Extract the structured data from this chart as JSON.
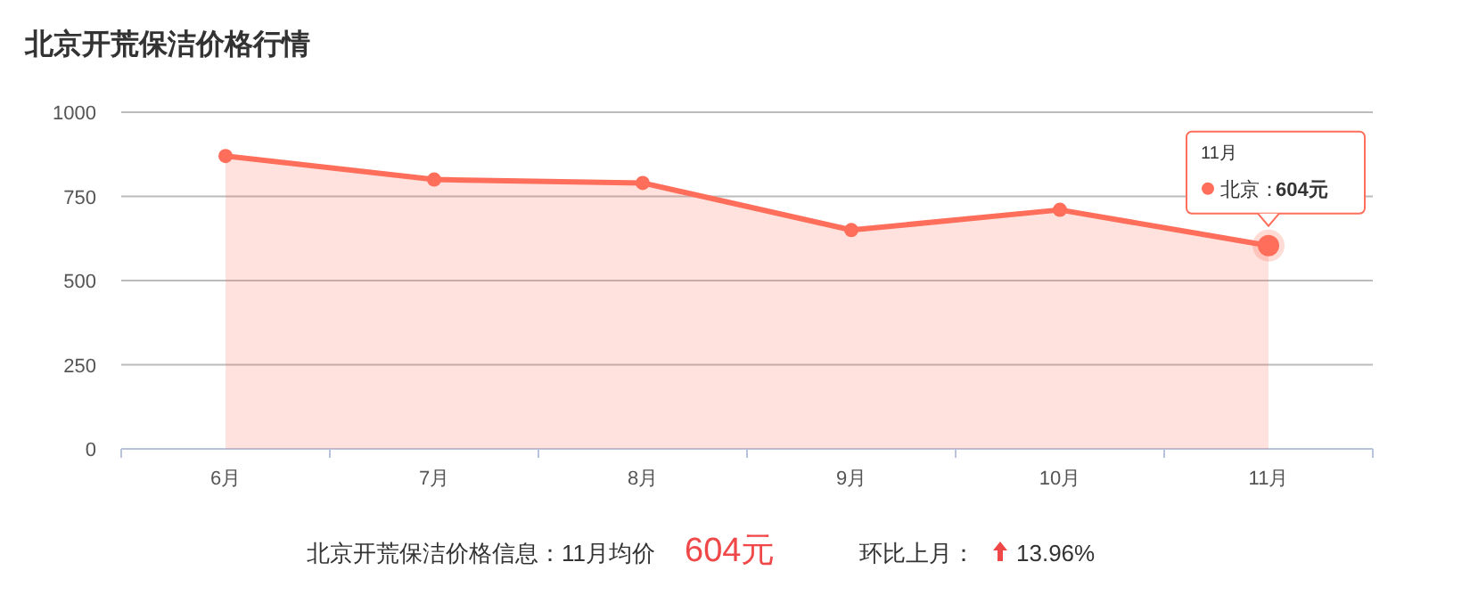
{
  "chart_data": {
    "type": "area",
    "title": "北京开荒保洁价格行情",
    "categories": [
      "6月",
      "7月",
      "8月",
      "9月",
      "10月",
      "11月"
    ],
    "series": [
      {
        "name": "北京：",
        "color": "#ff6e5a",
        "values": [
          870,
          800,
          790,
          650,
          710,
          604
        ],
        "value_labels": [
          null,
          null,
          null,
          null,
          null,
          "604元"
        ]
      }
    ],
    "ylim": [
      0,
      1000
    ],
    "yticks": [
      0,
      250,
      500,
      750,
      1000
    ],
    "grid": "y",
    "marker": "circle",
    "line_style": "solid",
    "legend": "top right",
    "annotations": [
      "11月",
      "北京开荒保洁价格信息：11月均价",
      "604元",
      "环比上月：",
      "13.96%"
    ]
  }
}
